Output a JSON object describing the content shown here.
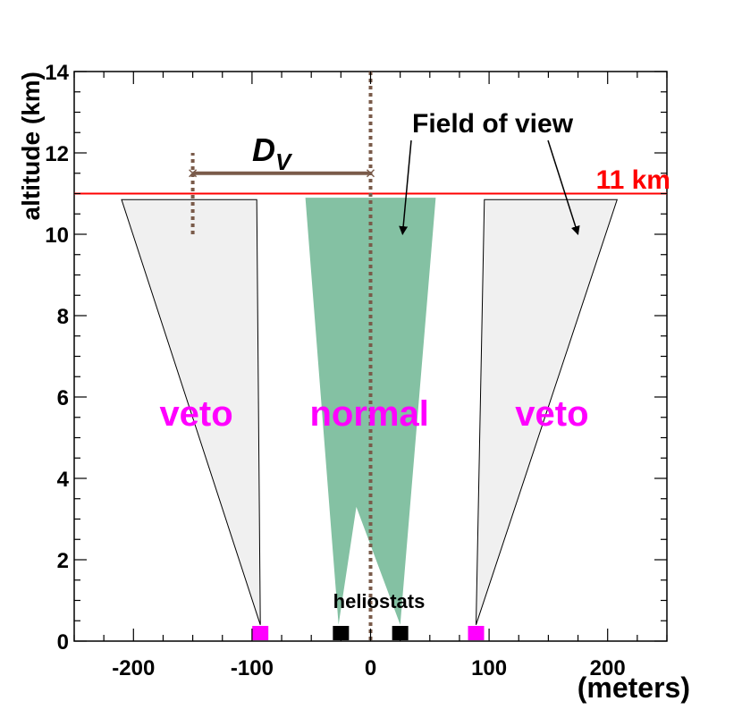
{
  "chart_data": {
    "type": "diagram",
    "title": "",
    "xlabel": "(meters)",
    "ylabel": "altitude (km)",
    "xlim": [
      -250,
      250
    ],
    "ylim": [
      0,
      14
    ],
    "x_ticks": [
      -200,
      -100,
      0,
      100,
      200
    ],
    "y_ticks": [
      0,
      2,
      4,
      6,
      8,
      10,
      12,
      14
    ],
    "colors": {
      "green": "#84c1a3",
      "veto_fill": "#f0f0f0",
      "magenta": "#ff00ff",
      "red": "#ff0000",
      "brown": "#7a5b4a",
      "black": "#000000"
    },
    "reference_line": {
      "altitude": 11,
      "label": "11 km"
    },
    "center_line_x": 0,
    "dv_marker": {
      "x_start": -150,
      "x_end": 0,
      "y": 11.5,
      "dashed_from_y": 10,
      "dashed_to_y": 12,
      "label": "D",
      "subscript": "V"
    },
    "heliostats": [
      {
        "x": -93,
        "role": "veto"
      },
      {
        "x": -25,
        "role": "normal"
      },
      {
        "x": 25,
        "role": "normal"
      },
      {
        "x": 89,
        "role": "veto"
      }
    ],
    "heliostats_label": "heliostats",
    "normal_fov": {
      "label": "normal",
      "polygon": [
        [
          -55,
          10.9
        ],
        [
          -27,
          0.4
        ],
        [
          -12,
          3.3
        ],
        [
          25,
          0.4
        ],
        [
          55,
          10.9
        ]
      ]
    },
    "veto_fovs": [
      {
        "label": "veto",
        "polygon": [
          [
            -210,
            10.85
          ],
          [
            -93,
            0.4
          ],
          [
            -96,
            10.85
          ]
        ]
      },
      {
        "label": "veto",
        "polygon": [
          [
            96,
            10.85
          ],
          [
            89,
            0.4
          ],
          [
            208,
            10.85
          ]
        ]
      }
    ],
    "fov_label": "Field of view",
    "fov_arrow_tips": [
      [
        27,
        10.0
      ],
      [
        175,
        10.0
      ]
    ]
  }
}
